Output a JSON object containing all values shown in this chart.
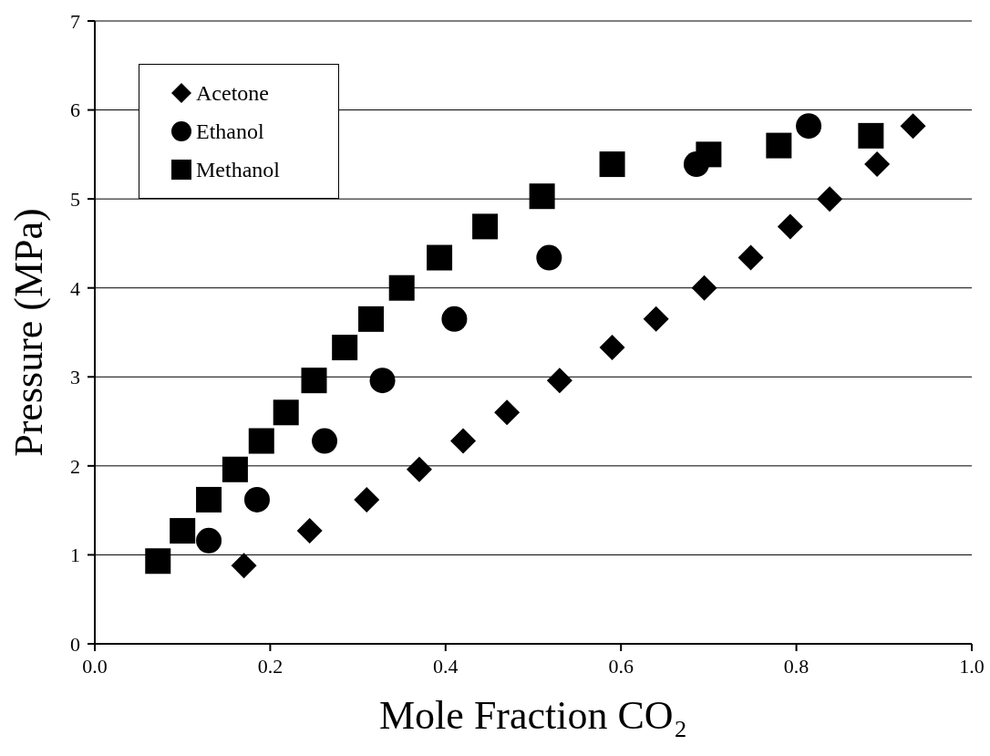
{
  "chart_data": {
    "type": "scatter",
    "xlabel": "Mole Fraction CO₂",
    "ylabel": "Pressure (MPa)",
    "xlim": [
      0,
      1
    ],
    "xticks": [
      {
        "value": 0,
        "label": "0.0"
      },
      {
        "value": 0.2,
        "label": "0.2"
      },
      {
        "value": 0.4,
        "label": "0.4"
      },
      {
        "value": 0.6,
        "label": "0.6"
      },
      {
        "value": 0.8,
        "label": "0.8"
      },
      {
        "value": 1,
        "label": "1.0"
      }
    ],
    "ylim": [
      0,
      7
    ],
    "yticks": [
      0,
      1,
      2,
      3,
      4,
      5,
      6,
      7
    ],
    "grid": "y",
    "legend": "top left",
    "series": [
      {
        "name": "Acetone",
        "color": "#000000",
        "marker": "diamond",
        "x": [
          0.17,
          0.245,
          0.31,
          0.37,
          0.42,
          0.47,
          0.53,
          0.59,
          0.64,
          0.695,
          0.748,
          0.793,
          0.838,
          0.892,
          0.933
        ],
        "values": [
          0.88,
          1.27,
          1.62,
          1.96,
          2.28,
          2.6,
          2.96,
          3.33,
          3.65,
          4.0,
          4.34,
          4.69,
          5.0,
          5.39,
          5.82
        ]
      },
      {
        "name": "Ethanol",
        "color": "#000000",
        "marker": "circle",
        "x": [
          0.13,
          0.185,
          0.262,
          0.328,
          0.41,
          0.518,
          0.686,
          0.814
        ],
        "values": [
          1.16,
          1.62,
          2.28,
          2.96,
          3.65,
          4.34,
          5.39,
          5.82
        ]
      },
      {
        "name": "Methanol",
        "color": "#000000",
        "marker": "square",
        "x": [
          0.072,
          0.1,
          0.13,
          0.16,
          0.19,
          0.218,
          0.25,
          0.285,
          0.315,
          0.35,
          0.393,
          0.445,
          0.51,
          0.59,
          0.7,
          0.78,
          0.885
        ],
        "values": [
          0.93,
          1.27,
          1.62,
          1.96,
          2.28,
          2.6,
          2.96,
          3.33,
          3.65,
          4.0,
          4.34,
          4.69,
          5.03,
          5.39,
          5.5,
          5.6,
          5.71
        ]
      }
    ]
  }
}
